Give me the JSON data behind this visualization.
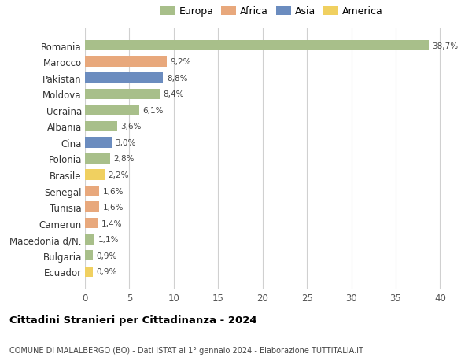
{
  "countries": [
    "Romania",
    "Marocco",
    "Pakistan",
    "Moldova",
    "Ucraina",
    "Albania",
    "Cina",
    "Polonia",
    "Brasile",
    "Senegal",
    "Tunisia",
    "Camerun",
    "Macedonia d/N.",
    "Bulgaria",
    "Ecuador"
  ],
  "values": [
    38.7,
    9.2,
    8.8,
    8.4,
    6.1,
    3.6,
    3.0,
    2.8,
    2.2,
    1.6,
    1.6,
    1.4,
    1.1,
    0.9,
    0.9
  ],
  "labels": [
    "38,7%",
    "9,2%",
    "8,8%",
    "8,4%",
    "6,1%",
    "3,6%",
    "3,0%",
    "2,8%",
    "2,2%",
    "1,6%",
    "1,6%",
    "1,4%",
    "1,1%",
    "0,9%",
    "0,9%"
  ],
  "colors": [
    "#a8bf8a",
    "#e8a87c",
    "#6b8cbf",
    "#a8bf8a",
    "#a8bf8a",
    "#a8bf8a",
    "#6b8cbf",
    "#a8bf8a",
    "#f0d060",
    "#e8a87c",
    "#e8a87c",
    "#e8a87c",
    "#a8bf8a",
    "#a8bf8a",
    "#f0d060"
  ],
  "legend_labels": [
    "Europa",
    "Africa",
    "Asia",
    "America"
  ],
  "legend_colors": [
    "#a8bf8a",
    "#e8a87c",
    "#6b8cbf",
    "#f0d060"
  ],
  "title": "Cittadini Stranieri per Cittadinanza - 2024",
  "subtitle": "COMUNE DI MALALBERGO (BO) - Dati ISTAT al 1° gennaio 2024 - Elaborazione TUTTITALIA.IT",
  "xlim": [
    0,
    42
  ],
  "xticks": [
    0,
    5,
    10,
    15,
    20,
    25,
    30,
    35,
    40
  ],
  "bg_color": "#ffffff",
  "grid_color": "#d0d0d0",
  "bar_height": 0.65
}
